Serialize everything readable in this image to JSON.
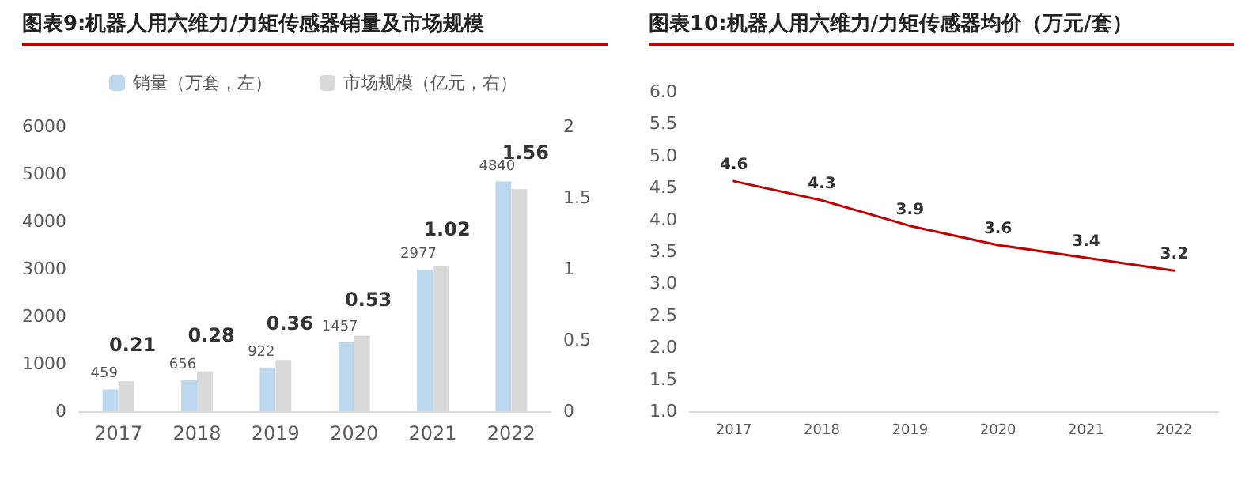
{
  "chart_data": [
    {
      "type": "bar",
      "title": "图表9:机器人用六维力/力矩传感器销量及市场规模",
      "categories": [
        "2017",
        "2018",
        "2019",
        "2020",
        "2021",
        "2022"
      ],
      "series": [
        {
          "name": "销量（万套，左）",
          "color": "#bdd7ee",
          "values": [
            459,
            656,
            922,
            1457,
            2977,
            4840
          ]
        },
        {
          "name": "市场规模（亿元，右）",
          "color": "#d9d9d9",
          "values": [
            0.21,
            0.28,
            0.36,
            0.53,
            1.02,
            1.56
          ],
          "axis": "y2"
        }
      ],
      "ylim": [
        0,
        6000
      ],
      "yticks": [
        0,
        1000,
        2000,
        3000,
        4000,
        5000,
        6000
      ],
      "y2lim": [
        0,
        2
      ],
      "y2ticks": [
        0,
        0.5,
        1,
        1.5,
        2
      ],
      "data_labels": true,
      "legend": "top",
      "grid": false
    },
    {
      "type": "line",
      "title": "图表10:机器人用六维力/力矩传感器均价（万元/套）",
      "categories": [
        "2017",
        "2018",
        "2019",
        "2020",
        "2021",
        "2022"
      ],
      "series": [
        {
          "color": "#c00000",
          "values": [
            4.6,
            4.3,
            3.9,
            3.6,
            3.4,
            3.2
          ]
        }
      ],
      "ylim": [
        1,
        6
      ],
      "yticks": [
        {
          "value": 1,
          "label": "1.0"
        },
        {
          "value": 1.5,
          "label": "1.5"
        },
        {
          "value": 2,
          "label": "2.0"
        },
        {
          "value": 2.5,
          "label": "2.5"
        },
        {
          "value": 3,
          "label": "3.0"
        },
        {
          "value": 3.5,
          "label": "3.5"
        },
        {
          "value": 4,
          "label": "4.0"
        },
        {
          "value": 4.5,
          "label": "4.5"
        },
        {
          "value": 5,
          "label": "5.0"
        },
        {
          "value": 5.5,
          "label": "5.5"
        },
        {
          "value": 6,
          "label": "6.0"
        }
      ],
      "data_labels": true,
      "marker": "none",
      "line_style": "solid",
      "grid": false
    }
  ]
}
